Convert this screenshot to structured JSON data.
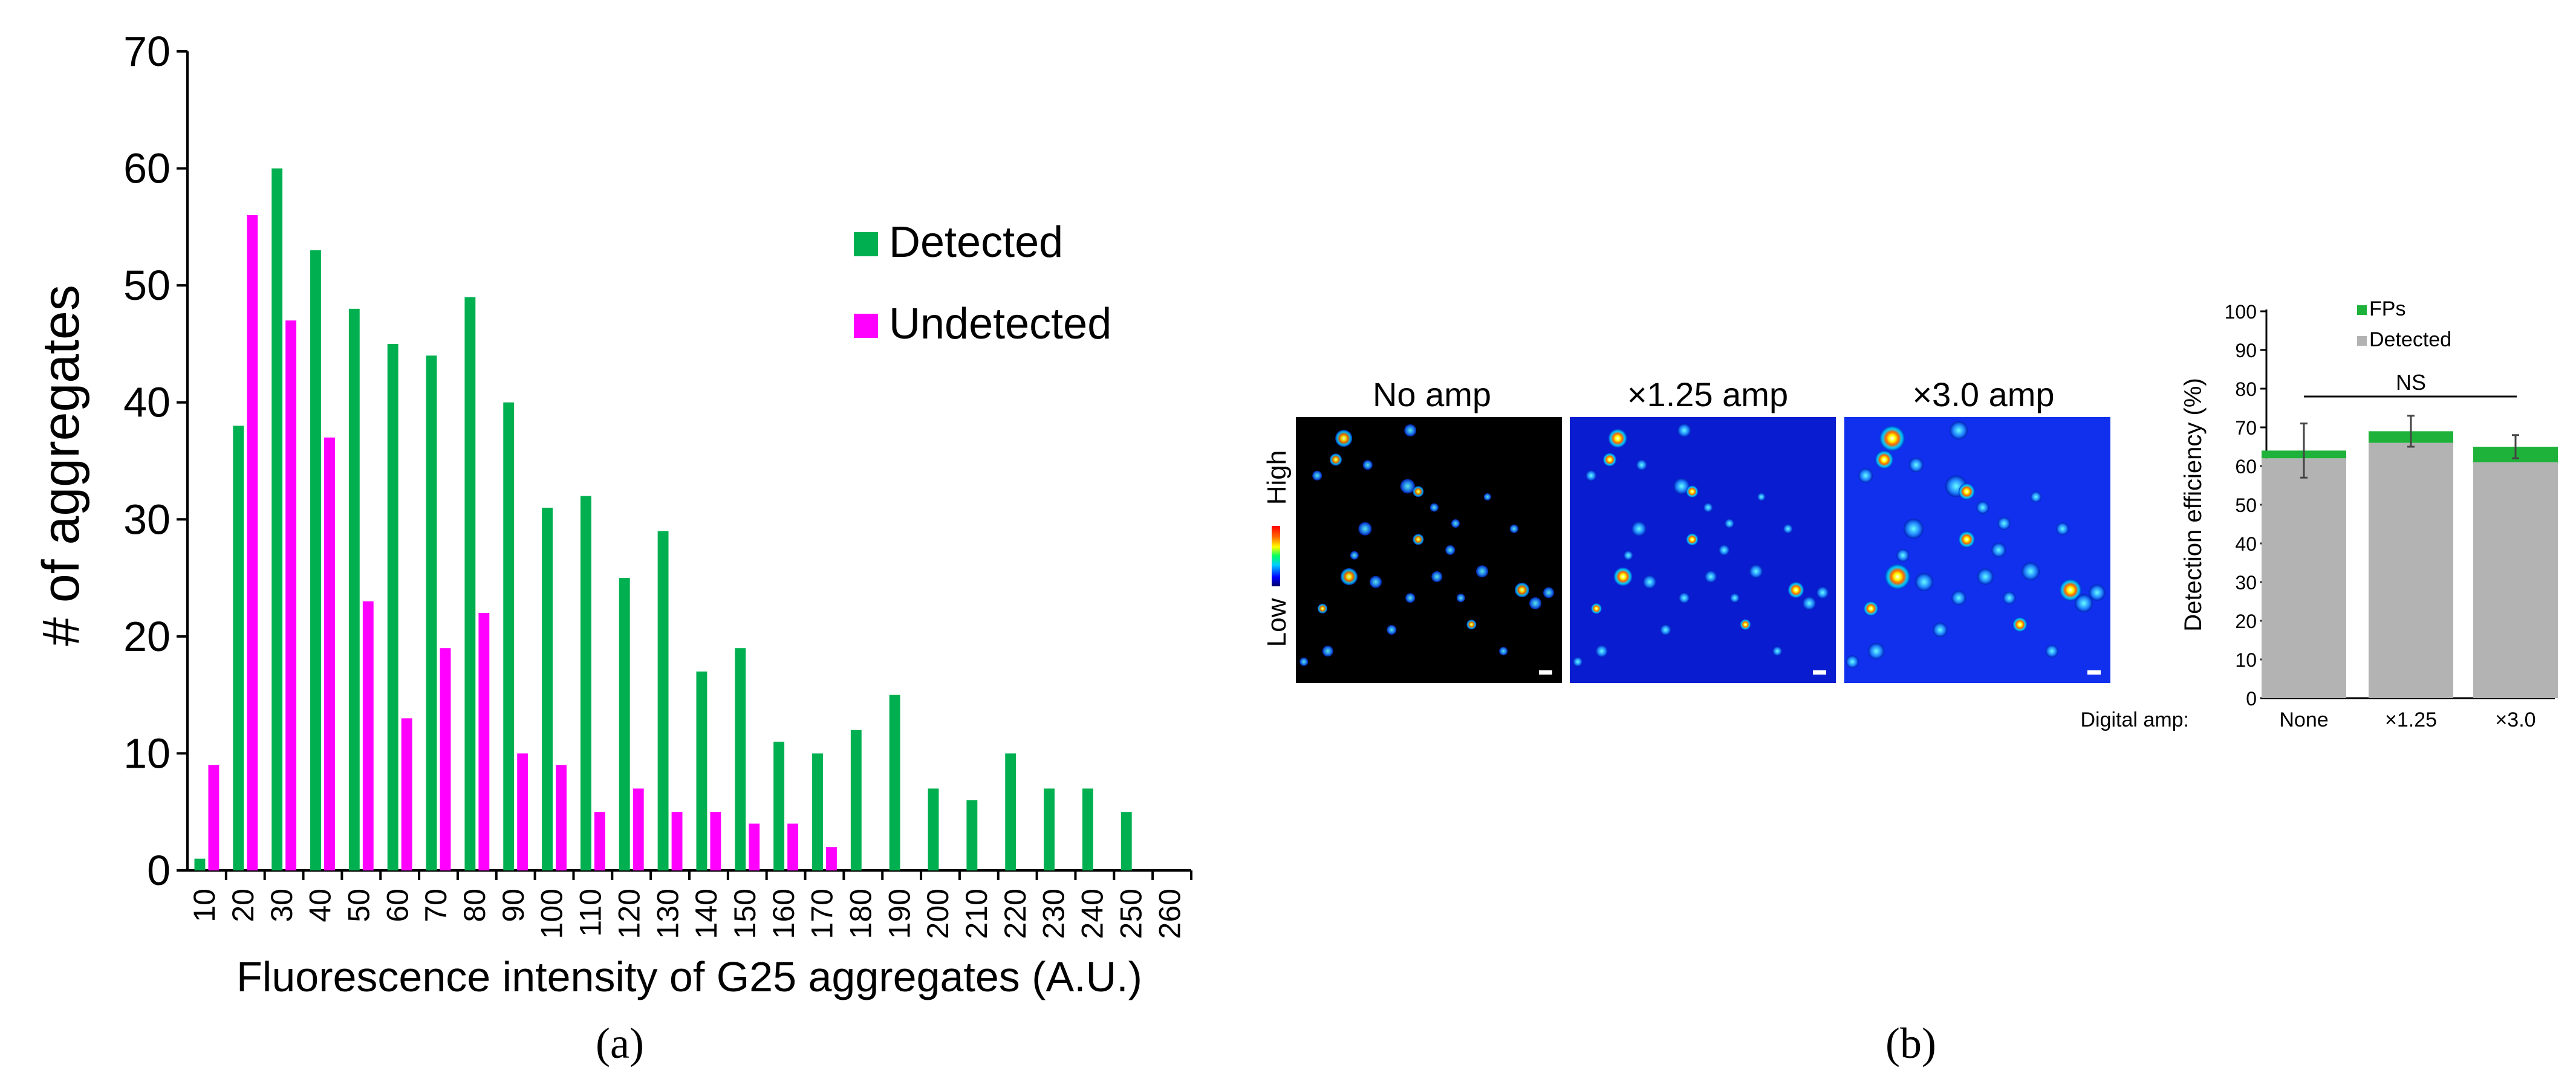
{
  "chart_data": [
    {
      "type": "bar",
      "panel_label": "(a)",
      "xlabel": "Fluorescence intensity of G25 aggregates (A.U.)",
      "ylabel": "# of aggregates",
      "ylim": [
        0,
        70
      ],
      "yticks": [
        "0",
        "10",
        "20",
        "30",
        "40",
        "50",
        "60",
        "70"
      ],
      "tick_labels": [
        "10",
        "20",
        "30",
        "40",
        "50",
        "60",
        "70",
        "80",
        "90",
        "100",
        "110",
        "120",
        "130",
        "140",
        "150",
        "160",
        "170",
        "180",
        "190",
        "200",
        "210",
        "220",
        "230",
        "240",
        "250",
        "260"
      ],
      "legend_position": "top-right",
      "series": [
        {
          "name": "Detected",
          "color": "#00b050",
          "values": [
            1,
            38,
            60,
            53,
            48,
            45,
            44,
            49,
            40,
            31,
            32,
            25,
            29,
            17,
            19,
            11,
            10,
            12,
            15,
            7,
            6,
            10,
            7,
            7,
            5,
            0
          ]
        },
        {
          "name": "Undetected",
          "color": "#ff00ff",
          "values": [
            9,
            56,
            47,
            37,
            23,
            13,
            19,
            22,
            10,
            9,
            5,
            7,
            5,
            5,
            4,
            4,
            2,
            0,
            0,
            0,
            0,
            0,
            0,
            0,
            0,
            0
          ]
        }
      ]
    },
    {
      "type": "bar",
      "panel_label": "(b)",
      "ylabel": "Detection efficiency (%)",
      "xlabel_prefix": "Digital amp:",
      "ylim": [
        0,
        100
      ],
      "yticks": [
        "0",
        "10",
        "20",
        "30",
        "40",
        "50",
        "60",
        "70",
        "80",
        "90",
        "100"
      ],
      "categories": [
        "None",
        "×1.25",
        "×3.0"
      ],
      "stacked": true,
      "series": [
        {
          "name": "Detected",
          "color": "#b3b3b3",
          "values": [
            62,
            66,
            61
          ]
        },
        {
          "name": "FPs",
          "color": "#1fb23a",
          "values": [
            2,
            3,
            4
          ]
        }
      ],
      "error_bars": [
        7,
        4,
        3
      ],
      "annotation": "NS",
      "legend_position": "top"
    }
  ],
  "images": {
    "titles": [
      "No amp",
      "×1.25 amp",
      "×3.0 amp"
    ],
    "colorbar_high": "High",
    "colorbar_low": "Low"
  }
}
